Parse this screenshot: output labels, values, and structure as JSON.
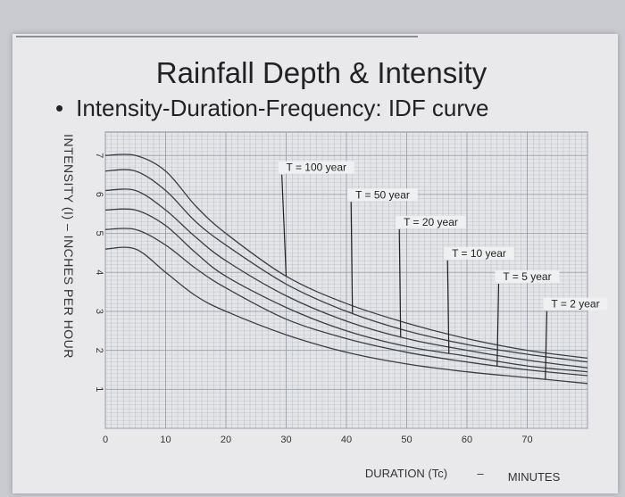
{
  "title": "Rainfall Depth & Intensity",
  "bullet": "Intensity-Duration-Frequency: IDF curve",
  "colors": {
    "background": "#e9e9ec",
    "grid": "#9aa0a8",
    "curve": "#3a3f46",
    "text": "#333333"
  },
  "chart_data": {
    "type": "line",
    "title": "Rainfall Depth & Intensity",
    "subtitle": "Intensity-Duration-Frequency: IDF curve",
    "ylabel": "INTENSITY (I) – INCHES PER HOUR",
    "xlabel": "DURATION (Tc)",
    "xunit": "MINUTES",
    "xlim": [
      0,
      80
    ],
    "ylim": [
      0,
      7.6
    ],
    "grid": true,
    "x_ticks": [
      {
        "v": 0,
        "label": "0"
      },
      {
        "v": 10,
        "label": "10"
      },
      {
        "v": 20,
        "label": "20"
      },
      {
        "v": 30,
        "label": "30"
      },
      {
        "v": 40,
        "label": "40"
      },
      {
        "v": 50,
        "label": "50"
      },
      {
        "v": 60,
        "label": "60"
      },
      {
        "v": 70,
        "label": "70"
      }
    ],
    "y_ticks": [
      {
        "v": 1,
        "label": "1"
      },
      {
        "v": 2,
        "label": "2"
      },
      {
        "v": 3,
        "label": "3"
      },
      {
        "v": 4,
        "label": "4"
      },
      {
        "v": 5,
        "label": "5"
      },
      {
        "v": 6,
        "label": "6"
      },
      {
        "v": 7,
        "label": "7"
      }
    ],
    "series": [
      {
        "name": "T = 100 year",
        "x": [
          0,
          5,
          10,
          15,
          20,
          30,
          40,
          50,
          60,
          70,
          80
        ],
        "values": [
          7.0,
          7.0,
          6.6,
          5.7,
          5.0,
          3.9,
          3.2,
          2.7,
          2.3,
          2.0,
          1.8
        ]
      },
      {
        "name": "T = 50 year",
        "x": [
          0,
          5,
          10,
          15,
          20,
          30,
          40,
          50,
          60,
          70,
          80
        ],
        "values": [
          6.6,
          6.6,
          6.1,
          5.3,
          4.7,
          3.7,
          3.0,
          2.5,
          2.15,
          1.9,
          1.7
        ]
      },
      {
        "name": "T = 20 year",
        "x": [
          0,
          5,
          10,
          15,
          20,
          30,
          40,
          50,
          60,
          70,
          80
        ],
        "values": [
          6.1,
          6.1,
          5.6,
          4.9,
          4.3,
          3.4,
          2.75,
          2.3,
          2.0,
          1.75,
          1.55
        ]
      },
      {
        "name": "T = 10 year",
        "x": [
          0,
          5,
          10,
          15,
          20,
          30,
          40,
          50,
          60,
          70,
          80
        ],
        "values": [
          5.6,
          5.6,
          5.2,
          4.5,
          3.9,
          3.1,
          2.5,
          2.1,
          1.85,
          1.6,
          1.45
        ]
      },
      {
        "name": "T = 5 year",
        "x": [
          0,
          5,
          10,
          15,
          20,
          30,
          40,
          50,
          60,
          70,
          80
        ],
        "values": [
          5.1,
          5.1,
          4.7,
          4.1,
          3.6,
          2.8,
          2.3,
          1.95,
          1.7,
          1.5,
          1.35
        ]
      },
      {
        "name": "T = 2 year",
        "x": [
          0,
          5,
          10,
          15,
          20,
          30,
          40,
          50,
          60,
          70,
          80
        ],
        "values": [
          4.6,
          4.6,
          4.0,
          3.4,
          3.0,
          2.4,
          1.95,
          1.65,
          1.45,
          1.3,
          1.15
        ]
      }
    ],
    "annotations": [
      {
        "text": "T = 100 year",
        "x": 35,
        "y": 6.6,
        "series": 0
      },
      {
        "text": "T = 50 year",
        "x": 46,
        "y": 5.9,
        "series": 1
      },
      {
        "text": "T = 20 year",
        "x": 54,
        "y": 5.2,
        "series": 2
      },
      {
        "text": "T = 10 year",
        "x": 62,
        "y": 4.4,
        "series": 3
      },
      {
        "text": "T = 5 year",
        "x": 70,
        "y": 3.8,
        "series": 4
      },
      {
        "text": "T = 2 year",
        "x": 78,
        "y": 3.1,
        "series": 5
      }
    ]
  }
}
